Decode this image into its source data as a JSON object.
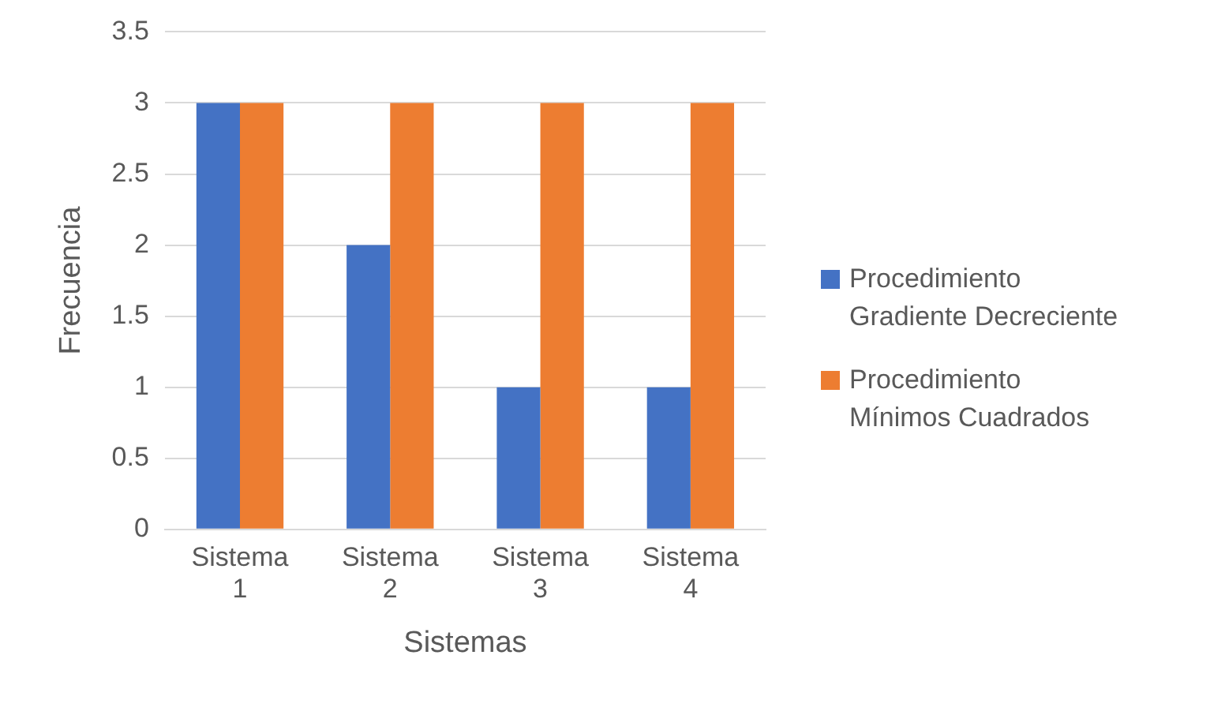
{
  "chart_data": {
    "type": "bar",
    "xlabel": "Sistemas",
    "ylabel": "Frecuencia",
    "categories": [
      "Sistema 1",
      "Sistema 2",
      "Sistema 3",
      "Sistema 4"
    ],
    "series": [
      {
        "name": "Procedimiento Gradiente Decreciente",
        "color": "#4472c4",
        "values": [
          3,
          2,
          1,
          1
        ]
      },
      {
        "name": "Procedimiento Mínimos Cuadrados",
        "color": "#ed7d31",
        "values": [
          3,
          3,
          3,
          3
        ]
      }
    ],
    "ylim": [
      0,
      3.5
    ],
    "yticks": [
      0,
      0.5,
      1,
      1.5,
      2,
      2.5,
      3,
      3.5
    ],
    "grid": "y",
    "legend": "right"
  }
}
